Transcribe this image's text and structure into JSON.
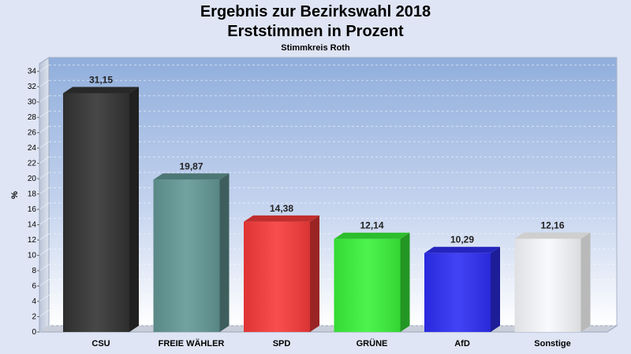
{
  "chart_data": {
    "type": "bar",
    "title": "Ergebnis zur Bezirkswahl 2018",
    "subtitle": "Erststimmen in Prozent",
    "caption": "Stimmkreis Roth",
    "ylabel": "%",
    "xlabel": "",
    "ylim": [
      0,
      35
    ],
    "yticks": [
      0,
      2,
      4,
      6,
      8,
      10,
      12,
      14,
      16,
      18,
      20,
      22,
      24,
      26,
      28,
      30,
      32,
      34
    ],
    "grid": true,
    "categories": [
      "CSU",
      "FREIE WÄHLER",
      "SPD",
      "GRÜNE",
      "AfD",
      "Sonstige"
    ],
    "values": [
      31.15,
      19.87,
      14.38,
      12.14,
      10.29,
      12.16
    ],
    "value_labels": [
      "31,15",
      "19,87",
      "14,38",
      "12,14",
      "10,29",
      "12,16"
    ],
    "colors": [
      "#333333",
      "#639896",
      "#f83a3a",
      "#3af23a",
      "#2e2ef5",
      "#ffffff"
    ]
  }
}
